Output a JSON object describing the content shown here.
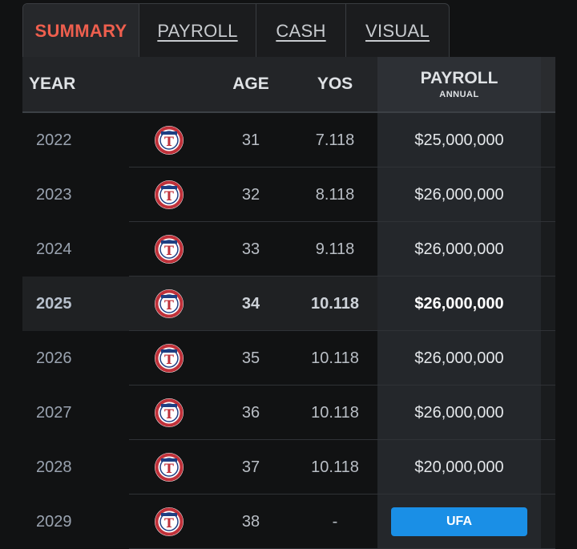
{
  "tabs": [
    {
      "label": "SUMMARY",
      "active": true
    },
    {
      "label": "PAYROLL",
      "active": false
    },
    {
      "label": "CASH",
      "active": false
    },
    {
      "label": "VISUAL",
      "active": false
    }
  ],
  "header": {
    "year": "YEAR",
    "age": "AGE",
    "yos": "YOS",
    "payroll": "PAYROLL",
    "payroll_sub": "ANNUAL"
  },
  "team_logo_icon": "rangers-logo-icon",
  "colors": {
    "accent": "#ee5f4e",
    "ufa": "#1a8fe6"
  },
  "rows": [
    {
      "year": "2022",
      "age": "31",
      "yos": "7.118",
      "payroll": "$25,000,000"
    },
    {
      "year": "2023",
      "age": "32",
      "yos": "8.118",
      "payroll": "$26,000,000"
    },
    {
      "year": "2024",
      "age": "33",
      "yos": "9.118",
      "payroll": "$26,000,000"
    },
    {
      "year": "2025",
      "age": "34",
      "yos": "10.118",
      "payroll": "$26,000,000",
      "current": true
    },
    {
      "year": "2026",
      "age": "35",
      "yos": "10.118",
      "payroll": "$26,000,000"
    },
    {
      "year": "2027",
      "age": "36",
      "yos": "10.118",
      "payroll": "$26,000,000"
    },
    {
      "year": "2028",
      "age": "37",
      "yos": "10.118",
      "payroll": "$20,000,000"
    },
    {
      "year": "2029",
      "age": "38",
      "yos": "-",
      "payroll": "UFA",
      "ufa": true
    }
  ]
}
